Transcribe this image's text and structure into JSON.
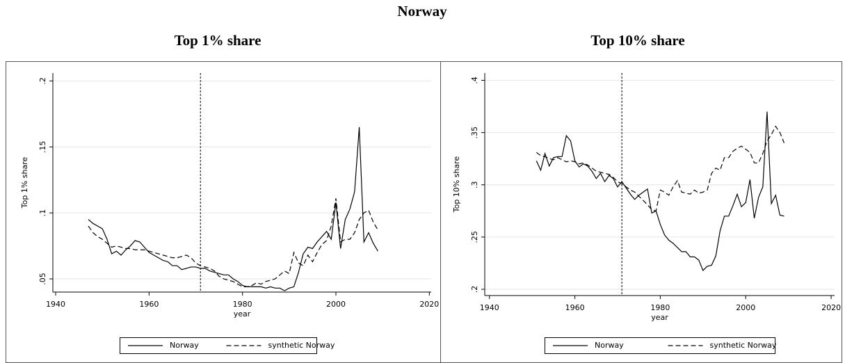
{
  "title": "Norway",
  "chart_data": [
    {
      "type": "line",
      "title": "Top 1% share",
      "xlabel": "year",
      "ylabel": "Top 1% share",
      "x": [
        1947,
        1948,
        1949,
        1950,
        1951,
        1952,
        1953,
        1954,
        1955,
        1956,
        1957,
        1958,
        1959,
        1960,
        1961,
        1962,
        1963,
        1964,
        1965,
        1966,
        1967,
        1968,
        1969,
        1970,
        1971,
        1972,
        1973,
        1974,
        1975,
        1976,
        1977,
        1978,
        1979,
        1980,
        1981,
        1982,
        1983,
        1984,
        1985,
        1986,
        1987,
        1988,
        1989,
        1990,
        1991,
        1992,
        1993,
        1994,
        1995,
        1996,
        1997,
        1998,
        1999,
        2000,
        2001,
        2002,
        2003,
        2004,
        2005,
        2006,
        2007,
        2008,
        2009
      ],
      "series": [
        {
          "name": "Norway",
          "color": "#000000",
          "linestyle": "solid",
          "values": [
            0.095,
            0.092,
            0.09,
            0.088,
            0.08,
            0.069,
            0.071,
            0.068,
            0.072,
            0.075,
            0.079,
            0.078,
            0.074,
            0.07,
            0.068,
            0.066,
            0.064,
            0.063,
            0.06,
            0.06,
            0.057,
            0.058,
            0.059,
            0.059,
            0.058,
            0.058,
            0.056,
            0.055,
            0.054,
            0.053,
            0.053,
            0.05,
            0.048,
            0.045,
            0.044,
            0.044,
            0.044,
            0.044,
            0.043,
            0.044,
            0.043,
            0.043,
            0.041,
            0.043,
            0.044,
            0.055,
            0.069,
            0.074,
            0.073,
            0.078,
            0.082,
            0.086,
            0.08,
            0.108,
            0.073,
            0.095,
            0.103,
            0.116,
            0.165,
            0.078,
            0.085,
            0.077,
            0.071
          ]
        },
        {
          "name": "synthetic Norway",
          "color": "#000000",
          "linestyle": "dashed",
          "values": [
            0.09,
            0.085,
            0.082,
            0.08,
            0.077,
            0.074,
            0.075,
            0.074,
            0.073,
            0.073,
            0.072,
            0.072,
            0.072,
            0.071,
            0.07,
            0.069,
            0.068,
            0.067,
            0.066,
            0.066,
            0.067,
            0.068,
            0.066,
            0.062,
            0.06,
            0.059,
            0.058,
            0.056,
            0.052,
            0.05,
            0.049,
            0.048,
            0.046,
            0.044,
            0.044,
            0.045,
            0.047,
            0.046,
            0.048,
            0.049,
            0.05,
            0.053,
            0.056,
            0.054,
            0.07,
            0.062,
            0.06,
            0.068,
            0.063,
            0.07,
            0.076,
            0.079,
            0.09,
            0.111,
            0.078,
            0.08,
            0.08,
            0.085,
            0.095,
            0.1,
            0.102,
            0.093,
            0.087
          ]
        }
      ],
      "xlim": [
        1939.4,
        2020.4
      ],
      "xticks": [
        1940,
        1960,
        1980,
        2000,
        2020
      ],
      "ylim": [
        0.04,
        0.206
      ],
      "yticks": [
        {
          "value": 0.05,
          "label": ".05"
        },
        {
          "value": 0.1,
          "label": ".1"
        },
        {
          "value": 0.15,
          "label": ".15"
        },
        {
          "value": 0.2,
          "label": ".2"
        }
      ],
      "xline": 1971,
      "grid": true,
      "legend": "bottom"
    },
    {
      "type": "line",
      "title": "Top 10% share",
      "xlabel": "year",
      "ylabel": "Top 10% share",
      "x": [
        1951,
        1952,
        1953,
        1954,
        1955,
        1956,
        1957,
        1958,
        1959,
        1960,
        1961,
        1962,
        1963,
        1964,
        1965,
        1966,
        1967,
        1968,
        1969,
        1970,
        1971,
        1972,
        1973,
        1974,
        1975,
        1976,
        1977,
        1978,
        1979,
        1980,
        1981,
        1982,
        1983,
        1984,
        1985,
        1986,
        1987,
        1988,
        1989,
        1990,
        1991,
        1992,
        1993,
        1994,
        1995,
        1996,
        1997,
        1998,
        1999,
        2000,
        2001,
        2002,
        2003,
        2004,
        2005,
        2006,
        2007,
        2008,
        2009
      ],
      "series": [
        {
          "name": "Norway",
          "color": "#000000",
          "linestyle": "solid",
          "values": [
            0.323,
            0.314,
            0.33,
            0.318,
            0.326,
            0.327,
            0.327,
            0.347,
            0.342,
            0.323,
            0.317,
            0.32,
            0.318,
            0.313,
            0.306,
            0.311,
            0.303,
            0.309,
            0.306,
            0.298,
            0.303,
            0.297,
            0.291,
            0.286,
            0.29,
            0.293,
            0.296,
            0.273,
            0.275,
            0.262,
            0.252,
            0.247,
            0.244,
            0.24,
            0.236,
            0.236,
            0.231,
            0.231,
            0.228,
            0.218,
            0.222,
            0.223,
            0.232,
            0.256,
            0.27,
            0.27,
            0.28,
            0.291,
            0.279,
            0.283,
            0.305,
            0.268,
            0.288,
            0.298,
            0.37,
            0.282,
            0.29,
            0.271,
            0.27
          ]
        },
        {
          "name": "synthetic Norway",
          "color": "#000000",
          "linestyle": "dashed",
          "values": [
            0.331,
            0.328,
            0.327,
            0.325,
            0.324,
            0.326,
            0.324,
            0.322,
            0.323,
            0.322,
            0.32,
            0.321,
            0.319,
            0.316,
            0.313,
            0.312,
            0.311,
            0.31,
            0.307,
            0.303,
            0.301,
            0.298,
            0.295,
            0.293,
            0.289,
            0.285,
            0.281,
            0.276,
            0.275,
            0.295,
            0.293,
            0.29,
            0.298,
            0.304,
            0.293,
            0.292,
            0.291,
            0.295,
            0.292,
            0.293,
            0.295,
            0.311,
            0.316,
            0.314,
            0.326,
            0.326,
            0.332,
            0.335,
            0.337,
            0.334,
            0.331,
            0.321,
            0.321,
            0.33,
            0.342,
            0.348,
            0.356,
            0.35,
            0.34
          ]
        }
      ],
      "xlim": [
        1938.9,
        2020.8
      ],
      "xticks": [
        1940,
        1960,
        1980,
        2000,
        2020
      ],
      "ylim": [
        0.194,
        0.407
      ],
      "yticks": [
        {
          "value": 0.2,
          "label": ".2"
        },
        {
          "value": 0.25,
          "label": ".25"
        },
        {
          "value": 0.3,
          "label": ".3"
        },
        {
          "value": 0.35,
          "label": ".35"
        },
        {
          "value": 0.4,
          "label": ".4"
        }
      ],
      "xline": 1971,
      "grid": true,
      "legend": "bottom"
    }
  ]
}
